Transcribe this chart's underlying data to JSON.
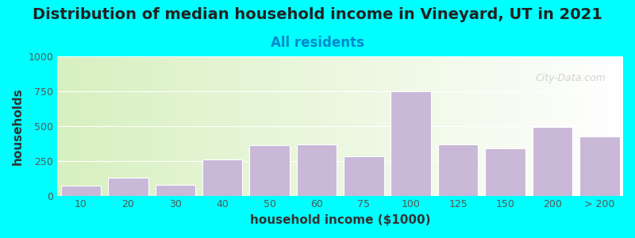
{
  "title": "Distribution of median household income in Vineyard, UT in 2021",
  "subtitle": "All residents",
  "xlabel": "household income ($1000)",
  "ylabel": "households",
  "background_color": "#00FFFF",
  "plot_bg_gradient_left": "#d8f0c0",
  "plot_bg_gradient_right": "#ffffff",
  "bar_color": "#c9b8d8",
  "bar_edge_color": "#ffffff",
  "categories": [
    "10",
    "20",
    "30",
    "40",
    "50",
    "60",
    "75",
    "100",
    "125",
    "150",
    "200",
    "> 200"
  ],
  "values": [
    70,
    130,
    80,
    260,
    360,
    365,
    285,
    750,
    365,
    340,
    495,
    425
  ],
  "ylim": [
    0,
    1000
  ],
  "yticks": [
    0,
    250,
    500,
    750,
    1000
  ],
  "title_fontsize": 14,
  "subtitle_fontsize": 12,
  "axis_label_fontsize": 11,
  "tick_fontsize": 9,
  "watermark_text": "City-Data.com",
  "watermark_color": "#c0c0c0"
}
